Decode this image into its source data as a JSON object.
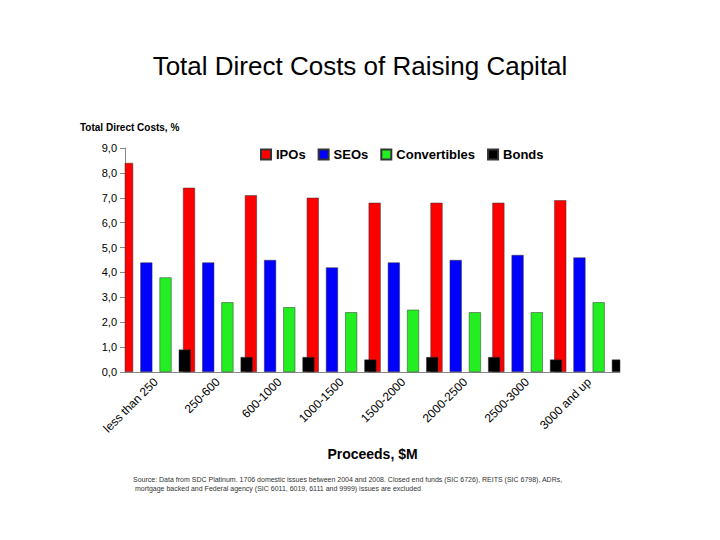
{
  "chart_data": {
    "type": "bar",
    "title": "Total Direct Costs of Raising Capital",
    "ylabel": "Total Direct Costs, %",
    "xlabel": "Proceeds, $M",
    "note": "Source: Data from SDC Platinum. 1706 domestic issues between 2004 and 2008. Closed end funds (SIC 6726), REITS (SIC 6798), ADRs, mortgage backed and Federal agency (SIC 6011, 6019, 6111 and 9999) issues are excluded",
    "categories": [
      "less than 250",
      "250-600",
      "600-1000",
      "1000-1500",
      "1500-2000",
      "2000-2500",
      "2500-3000",
      "3000 and up"
    ],
    "series": [
      {
        "name": "IPOs",
        "color": "#ff0000",
        "values": [
          8.4,
          7.4,
          7.1,
          7.0,
          6.8,
          6.8,
          6.8,
          6.9
        ]
      },
      {
        "name": "SEOs",
        "color": "#0000ff",
        "values": [
          4.4,
          4.4,
          4.5,
          4.2,
          4.4,
          4.5,
          4.7,
          4.6
        ]
      },
      {
        "name": "Convertibles",
        "color": "#22ee22",
        "values": [
          3.8,
          2.8,
          2.6,
          2.4,
          2.5,
          2.4,
          2.4,
          2.8
        ]
      },
      {
        "name": "Bonds",
        "color": "#000000",
        "values": [
          0.9,
          0.6,
          0.6,
          0.5,
          0.6,
          0.6,
          0.5,
          0.5
        ]
      }
    ],
    "ylim": [
      0,
      9
    ],
    "yticks": [
      {
        "value": 0,
        "label": "0,0"
      },
      {
        "value": 1,
        "label": "1,0"
      },
      {
        "value": 2,
        "label": "2,0"
      },
      {
        "value": 3,
        "label": "3,0"
      },
      {
        "value": 4,
        "label": "4,0"
      },
      {
        "value": 5,
        "label": "5,0"
      },
      {
        "value": 6,
        "label": "6,0"
      },
      {
        "value": 7,
        "label": "7,0"
      },
      {
        "value": 8,
        "label": "8,0"
      },
      {
        "value": 9,
        "label": "9,0"
      }
    ],
    "grid": false,
    "legend": "top"
  }
}
